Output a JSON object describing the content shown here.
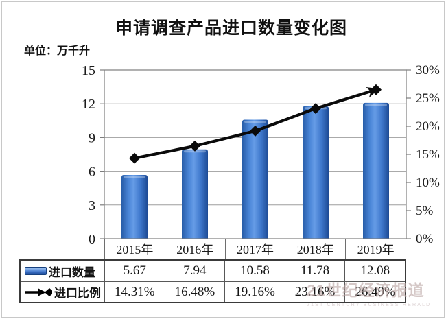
{
  "title": "申请调查产品进口数量变化图",
  "unit_label": "单位：万千升",
  "watermark": {
    "main": "21世纪经济报道",
    "sub": "21ST CENTURY BUSINESS HERALD"
  },
  "chart_data": {
    "type": "combo-bar-line",
    "title": "申请调查产品进口数量变化图",
    "ylabel": "万千升",
    "categories": [
      "2015年",
      "2016年",
      "2017年",
      "2018年",
      "2019年"
    ],
    "series": [
      {
        "name": "进口数量",
        "type": "bar",
        "axis": "left",
        "color": "#3a70c8",
        "values": [
          5.67,
          7.94,
          10.58,
          11.78,
          12.08
        ]
      },
      {
        "name": "进口比例",
        "type": "line",
        "axis": "right",
        "color": "#0a0a0a",
        "marker": "diamond",
        "arrow_end": true,
        "values": [
          14.31,
          16.48,
          19.16,
          23.16,
          26.49
        ]
      }
    ],
    "left_axis": {
      "min": 0,
      "max": 15,
      "step": 3,
      "ticks": [
        "0",
        "3",
        "6",
        "9",
        "12",
        "15"
      ]
    },
    "right_axis": {
      "min": 0,
      "max": 30,
      "step": 5,
      "ticks": [
        "0%",
        "5%",
        "10%",
        "15%",
        "20%",
        "25%",
        "30%"
      ]
    },
    "grid": true,
    "legend_position": "table-left"
  },
  "table": {
    "rows": [
      {
        "label": "进口数量",
        "icon": "bar-legend-icon",
        "values": [
          "5.67",
          "7.94",
          "10.58",
          "11.78",
          "12.08"
        ]
      },
      {
        "label": "进口比例",
        "icon": "line-arrow-legend-icon",
        "values": [
          "14.31%",
          "16.48%",
          "19.16%",
          "23.16%",
          "26.49%"
        ]
      }
    ]
  }
}
